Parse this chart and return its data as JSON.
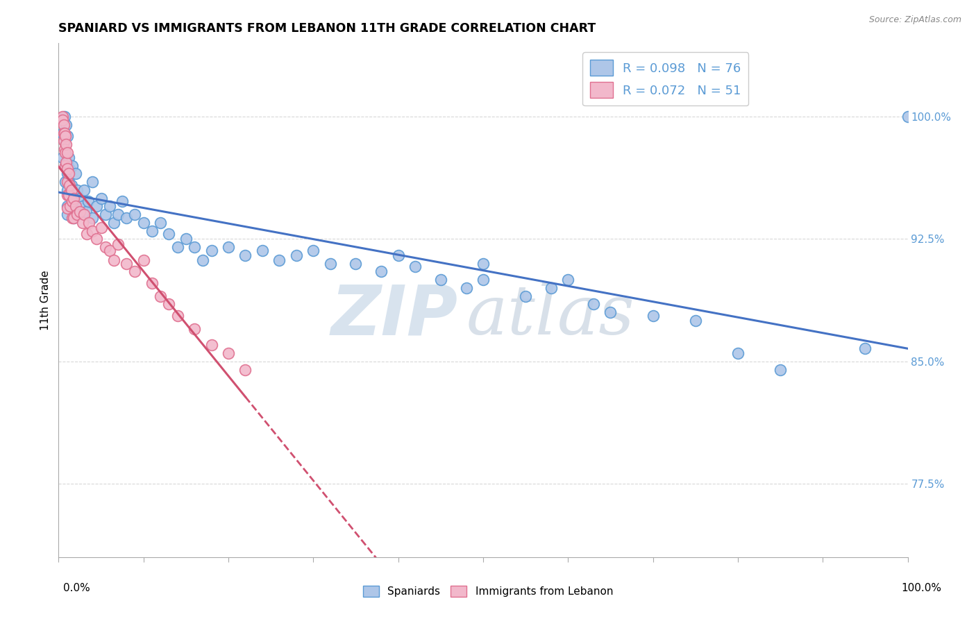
{
  "title": "SPANIARD VS IMMIGRANTS FROM LEBANON 11TH GRADE CORRELATION CHART",
  "source_text": "Source: ZipAtlas.com",
  "ylabel": "11th Grade",
  "yticks": [
    0.775,
    0.85,
    0.925,
    1.0
  ],
  "ytick_labels": [
    "77.5%",
    "85.0%",
    "92.5%",
    "100.0%"
  ],
  "xmin": 0.0,
  "xmax": 1.0,
  "ymin": 0.73,
  "ymax": 1.045,
  "blue_R": "0.098",
  "blue_N": "76",
  "pink_R": "0.072",
  "pink_N": "51",
  "blue_color": "#aec6e8",
  "pink_color": "#f2b8cb",
  "blue_edge_color": "#5b9bd5",
  "pink_edge_color": "#e07090",
  "blue_line_color": "#4472c4",
  "pink_line_color": "#d05070",
  "grid_color": "#d8d8d8",
  "blue_scatter_x": [
    0.005,
    0.005,
    0.007,
    0.007,
    0.008,
    0.008,
    0.009,
    0.01,
    0.01,
    0.01,
    0.01,
    0.01,
    0.01,
    0.012,
    0.012,
    0.013,
    0.015,
    0.015,
    0.016,
    0.016,
    0.018,
    0.018,
    0.02,
    0.02,
    0.022,
    0.025,
    0.028,
    0.03,
    0.032,
    0.035,
    0.04,
    0.04,
    0.045,
    0.05,
    0.055,
    0.06,
    0.065,
    0.07,
    0.075,
    0.08,
    0.09,
    0.1,
    0.11,
    0.12,
    0.13,
    0.14,
    0.15,
    0.16,
    0.17,
    0.18,
    0.2,
    0.22,
    0.24,
    0.26,
    0.28,
    0.3,
    0.32,
    0.35,
    0.38,
    0.4,
    0.42,
    0.45,
    0.48,
    0.5,
    0.5,
    0.55,
    0.58,
    0.6,
    0.63,
    0.65,
    0.7,
    0.75,
    0.8,
    0.85,
    0.95,
    1.0
  ],
  "blue_scatter_y": [
    0.99,
    0.975,
    1.0,
    0.985,
    0.97,
    0.96,
    0.995,
    0.988,
    0.972,
    0.965,
    0.955,
    0.945,
    0.94,
    0.975,
    0.96,
    0.968,
    0.958,
    0.945,
    0.97,
    0.95,
    0.952,
    0.938,
    0.965,
    0.942,
    0.955,
    0.95,
    0.945,
    0.955,
    0.942,
    0.948,
    0.96,
    0.938,
    0.945,
    0.95,
    0.94,
    0.945,
    0.935,
    0.94,
    0.948,
    0.938,
    0.94,
    0.935,
    0.93,
    0.935,
    0.928,
    0.92,
    0.925,
    0.92,
    0.912,
    0.918,
    0.92,
    0.915,
    0.918,
    0.912,
    0.915,
    0.918,
    0.91,
    0.91,
    0.905,
    0.915,
    0.908,
    0.9,
    0.895,
    0.9,
    0.91,
    0.89,
    0.895,
    0.9,
    0.885,
    0.88,
    0.878,
    0.875,
    0.855,
    0.845,
    0.858,
    1.0
  ],
  "pink_scatter_x": [
    0.005,
    0.005,
    0.006,
    0.006,
    0.006,
    0.007,
    0.007,
    0.008,
    0.008,
    0.008,
    0.009,
    0.009,
    0.01,
    0.01,
    0.01,
    0.01,
    0.01,
    0.012,
    0.012,
    0.013,
    0.014,
    0.015,
    0.016,
    0.016,
    0.018,
    0.018,
    0.02,
    0.022,
    0.025,
    0.028,
    0.03,
    0.033,
    0.036,
    0.04,
    0.045,
    0.05,
    0.055,
    0.06,
    0.065,
    0.07,
    0.08,
    0.09,
    0.1,
    0.11,
    0.12,
    0.13,
    0.14,
    0.16,
    0.18,
    0.2,
    0.22
  ],
  "pink_scatter_y": [
    1.0,
    0.998,
    0.995,
    0.99,
    0.985,
    0.99,
    0.98,
    0.988,
    0.978,
    0.97,
    0.983,
    0.972,
    0.978,
    0.968,
    0.96,
    0.952,
    0.944,
    0.965,
    0.952,
    0.958,
    0.945,
    0.955,
    0.948,
    0.938,
    0.95,
    0.938,
    0.945,
    0.94,
    0.942,
    0.935,
    0.94,
    0.928,
    0.935,
    0.93,
    0.925,
    0.932,
    0.92,
    0.918,
    0.912,
    0.922,
    0.91,
    0.905,
    0.912,
    0.898,
    0.89,
    0.885,
    0.878,
    0.87,
    0.86,
    0.855,
    0.845
  ],
  "watermark_zip": "ZIP",
  "watermark_atlas": "atlas",
  "watermark_color_zip": "#c8d8e8",
  "watermark_color_atlas": "#b8c8d8"
}
